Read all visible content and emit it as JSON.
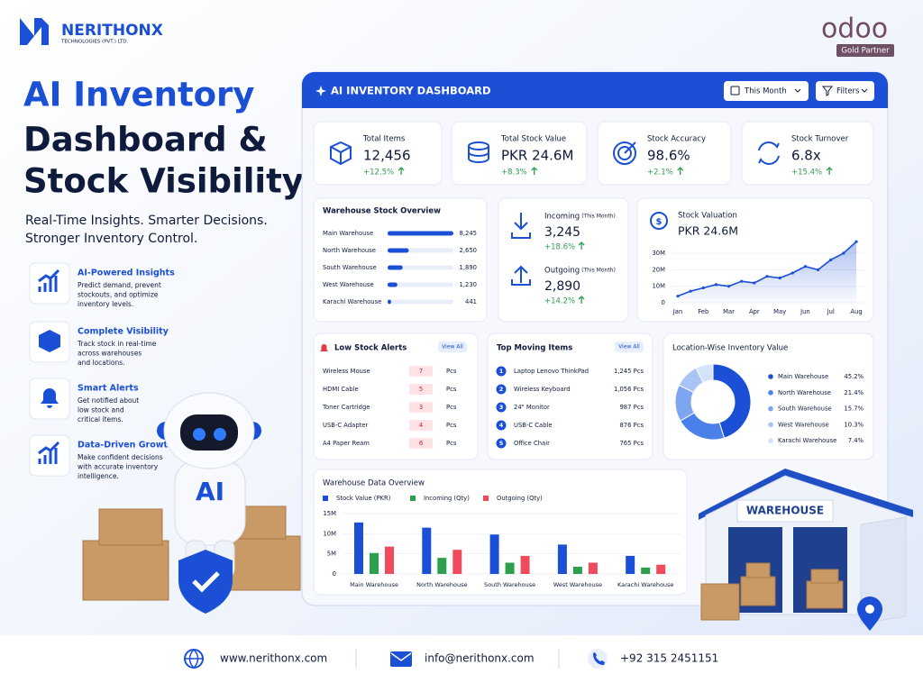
{
  "header": {
    "brand": "NERITHONX",
    "brand_sub": "TECHNOLOGIES (PVT.) LTD.",
    "partner_logo": "odoo",
    "partner_badge": "Gold Partner"
  },
  "hero": {
    "title_lines": [
      "AI Inventory",
      "Dashboard &",
      "Stock Visibility"
    ],
    "tagline_lines": [
      "Real-Time Insights. Smarter Decisions.",
      "Stronger Inventory Control."
    ]
  },
  "features": [
    {
      "title": "AI-Powered Insights",
      "text_lines": [
        "Predict demand, prevent",
        "stockouts, and optimize",
        "inventory levels."
      ]
    },
    {
      "title": "Complete Visibility",
      "text_lines": [
        "Track stock in real-time",
        "across warehouses",
        "and locations."
      ]
    },
    {
      "title": "Smart Alerts",
      "text_lines": [
        "Get notified about",
        "low stock and",
        "critical items."
      ]
    },
    {
      "title": "Data-Driven Growth",
      "text_lines": [
        "Make confident decisions",
        "with accurate inventory",
        "intelligence."
      ]
    }
  ],
  "robot_label": "AI",
  "dashboard": {
    "title": "AI INVENTORY DASHBOARD",
    "period_filter": "This Month",
    "filters_button": "Filters",
    "kpis": [
      {
        "label": "Total Items",
        "value": "12,456",
        "change": "+12.5%"
      },
      {
        "label": "Total Stock Value",
        "value": "PKR 24.6M",
        "change": "+8.3%"
      },
      {
        "label": "Stock Accuracy",
        "value": "98.6%",
        "change": "+2.1%"
      },
      {
        "label": "Stock Turnover",
        "value": "6.8x",
        "change": "+15.4%"
      }
    ],
    "incoming": {
      "label": "Incoming",
      "period": "(This Month)",
      "value": "3,245",
      "change": "+18.6%"
    },
    "outgoing": {
      "label": "Outgoing",
      "period": "(This Month)",
      "value": "2,890",
      "change": "+14.2%"
    },
    "low_stock": {
      "title": "Low Stock Alerts",
      "link": "View All",
      "unit": "Pcs",
      "items": [
        {
          "name": "Wireless Mouse",
          "qty": "7"
        },
        {
          "name": "HDMI Cable",
          "qty": "5"
        },
        {
          "name": "Toner Cartridge",
          "qty": "3"
        },
        {
          "name": "USB-C Adapter",
          "qty": "4"
        },
        {
          "name": "A4 Paper Ream",
          "qty": "6"
        }
      ]
    },
    "top_moving": {
      "title": "Top Moving Items",
      "link": "View All",
      "items": [
        {
          "rank": "1",
          "name": "Laptop Lenovo ThinkPad",
          "qty": "1,245 Pcs"
        },
        {
          "rank": "2",
          "name": "Wireless Keyboard",
          "qty": "1,056 Pcs"
        },
        {
          "rank": "3",
          "name": "24\" Monitor",
          "qty": "987 Pcs"
        },
        {
          "rank": "4",
          "name": "USB-C Cable",
          "qty": "876 Pcs"
        },
        {
          "rank": "5",
          "name": "Office Chair",
          "qty": "765 Pcs"
        }
      ]
    }
  },
  "chart_data": [
    {
      "type": "hbar",
      "title": "Warehouse Stock Overview",
      "categories": [
        "Main Warehouse",
        "North Warehouse",
        "South Warehouse",
        "West Warehouse",
        "Karachi Warehouse"
      ],
      "values": [
        8245,
        2650,
        1890,
        1230,
        441
      ],
      "value_labels": [
        "8,245",
        "2,650",
        "1,890",
        "1,230",
        "441"
      ],
      "color": "#1a4fd6"
    },
    {
      "type": "line",
      "title": "Stock Valuation",
      "subtitle": "PKR 24.6M",
      "categories": [
        "Jan",
        null,
        "Feb",
        null,
        "Mar",
        null,
        "Apr",
        null,
        "May",
        null,
        "Jun",
        null,
        "Jul",
        null,
        "Aug"
      ],
      "values": [
        4,
        7,
        9,
        11,
        10,
        13,
        12,
        16,
        15,
        18,
        22,
        20,
        26,
        30,
        37
      ],
      "ylim": [
        0,
        40
      ],
      "yticks": [
        0,
        {
          "value": 10,
          "label": "10M"
        },
        {
          "value": 20,
          "label": "20M"
        },
        {
          "value": 30,
          "label": "30M"
        }
      ],
      "color": "#1a4fd6",
      "area": true,
      "grid": true
    },
    {
      "type": "pie",
      "title": "Location-Wise Inventory Value",
      "donut": true,
      "categories": [
        "Main Warehouse",
        "North Warehouse",
        "South Warehouse",
        "West Warehouse",
        "Karachi Warehouse"
      ],
      "values": [
        45.2,
        21.4,
        15.7,
        10.3,
        7.4
      ],
      "value_labels": [
        "45.2%",
        "21.4%",
        "15.7%",
        "10.3%",
        "7.4%"
      ],
      "colors": [
        "#1a4fd6",
        "#4a80ea",
        "#7ea6f0",
        "#a9c3f5",
        "#d5e2fb"
      ]
    },
    {
      "type": "bar",
      "title": "Warehouse Data Overview",
      "categories": [
        "Main Warehouse",
        "North Warehouse",
        "South Warehouse",
        "West Warehouse",
        "Karachi Warehouse"
      ],
      "series": [
        {
          "name": "Stock Value (PKR)",
          "color": "#1a4fd6",
          "values": [
            12.8,
            11.5,
            9.8,
            7.3,
            4.5
          ]
        },
        {
          "name": "Incoming (Qty)",
          "color": "#2e9e4f",
          "values": [
            5.2,
            4,
            2.8,
            1.8,
            1.6
          ]
        },
        {
          "name": "Outgoing (Qty)",
          "color": "#ef4b5c",
          "values": [
            6.8,
            6,
            4.5,
            2.8,
            2.3
          ]
        }
      ],
      "ylim": [
        0,
        15
      ],
      "yticks": [
        0,
        {
          "value": 5,
          "label": "5M"
        },
        {
          "value": 10,
          "label": "10M"
        },
        {
          "value": 15,
          "label": "15M"
        }
      ],
      "legend": "top",
      "grid": true
    }
  ],
  "warehouse_sign": "WAREHOUSE",
  "footer": {
    "website": "www.nerithonx.com",
    "email": "info@nerithonx.com",
    "phone": "+92 315 2451151"
  }
}
